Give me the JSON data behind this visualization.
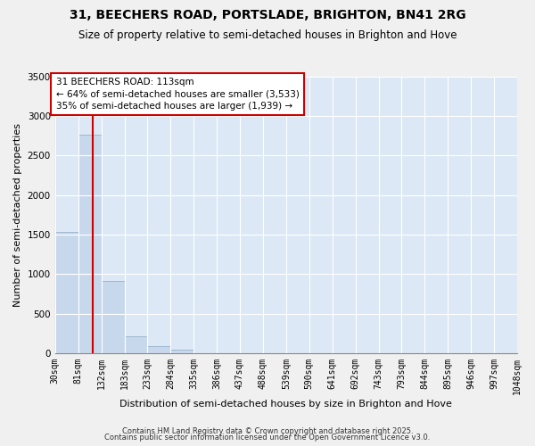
{
  "title": "31, BEECHERS ROAD, PORTSLADE, BRIGHTON, BN41 2RG",
  "subtitle": "Size of property relative to semi-detached houses in Brighton and Hove",
  "xlabel": "Distribution of semi-detached houses by size in Brighton and Hove",
  "ylabel": "Number of semi-detached properties",
  "bin_edges": [
    30,
    81,
    132,
    183,
    233,
    284,
    335,
    386,
    437,
    488,
    539,
    590,
    641,
    692,
    743,
    793,
    844,
    895,
    946,
    997,
    1048
  ],
  "bar_heights": [
    1530,
    2760,
    910,
    210,
    85,
    40,
    0,
    0,
    0,
    0,
    0,
    0,
    0,
    0,
    0,
    0,
    0,
    0,
    0,
    0
  ],
  "bar_color": "#c8d8ec",
  "bar_edge_color": "#a0b8d0",
  "property_size": 113,
  "red_line_color": "#cc0000",
  "annotation_title": "31 BEECHERS ROAD: 113sqm",
  "annotation_line1": "← 64% of semi-detached houses are smaller (3,533)",
  "annotation_line2": "35% of semi-detached houses are larger (1,939) →",
  "annotation_box_color": "#ffffff",
  "annotation_box_edge_color": "#cc0000",
  "ylim": [
    0,
    3500
  ],
  "plot_bg_color": "#dce8f5",
  "fig_bg_color": "#f0f0f0",
  "grid_color": "#ffffff",
  "footer1": "Contains HM Land Registry data © Crown copyright and database right 2025.",
  "footer2": "Contains public sector information licensed under the Open Government Licence v3.0.",
  "title_fontsize": 10,
  "subtitle_fontsize": 8.5,
  "axis_label_fontsize": 8,
  "tick_label_fontsize": 7,
  "yticks": [
    0,
    500,
    1000,
    1500,
    2000,
    2500,
    3000,
    3500
  ]
}
